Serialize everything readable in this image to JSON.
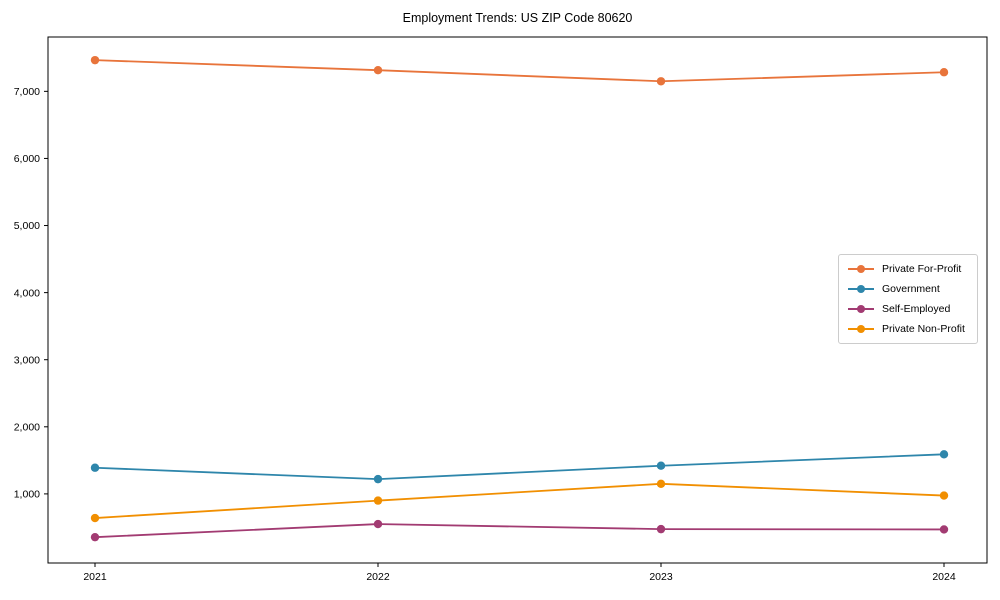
{
  "title": "Employment Trends: US ZIP Code 80620",
  "chart_data": {
    "type": "line",
    "title": "Employment Trends: US ZIP Code 80620",
    "categories": [
      "2021",
      "2022",
      "2023",
      "2024"
    ],
    "series": [
      {
        "name": "Private For-Profit",
        "color": "#E8743B",
        "values": [
          7465,
          7315,
          7150,
          7285
        ]
      },
      {
        "name": "Government",
        "color": "#2E86AB",
        "values": [
          1390,
          1220,
          1420,
          1590
        ]
      },
      {
        "name": "Self-Employed",
        "color": "#A23B72",
        "values": [
          355,
          550,
          475,
          470
        ]
      },
      {
        "name": "Private Non-Profit",
        "color": "#F18F01",
        "values": [
          640,
          900,
          1150,
          975
        ]
      }
    ],
    "xlabel": "",
    "ylabel": "",
    "yticks": [
      1000,
      2000,
      3000,
      4000,
      5000,
      6000,
      7000
    ],
    "ytick_labels": [
      "1,000",
      "2,000",
      "3,000",
      "4,000",
      "5,000",
      "6,000",
      "7,000"
    ],
    "ylim": [
      -30,
      7810
    ],
    "grid": false,
    "legend_position": "right-center",
    "axis_color": "#000000",
    "tick_label_color": "#000000",
    "legend_border_color": "#cccccc",
    "background": "#ffffff",
    "marker": "circle",
    "line_width": 1.8,
    "marker_radius": 4.2
  }
}
